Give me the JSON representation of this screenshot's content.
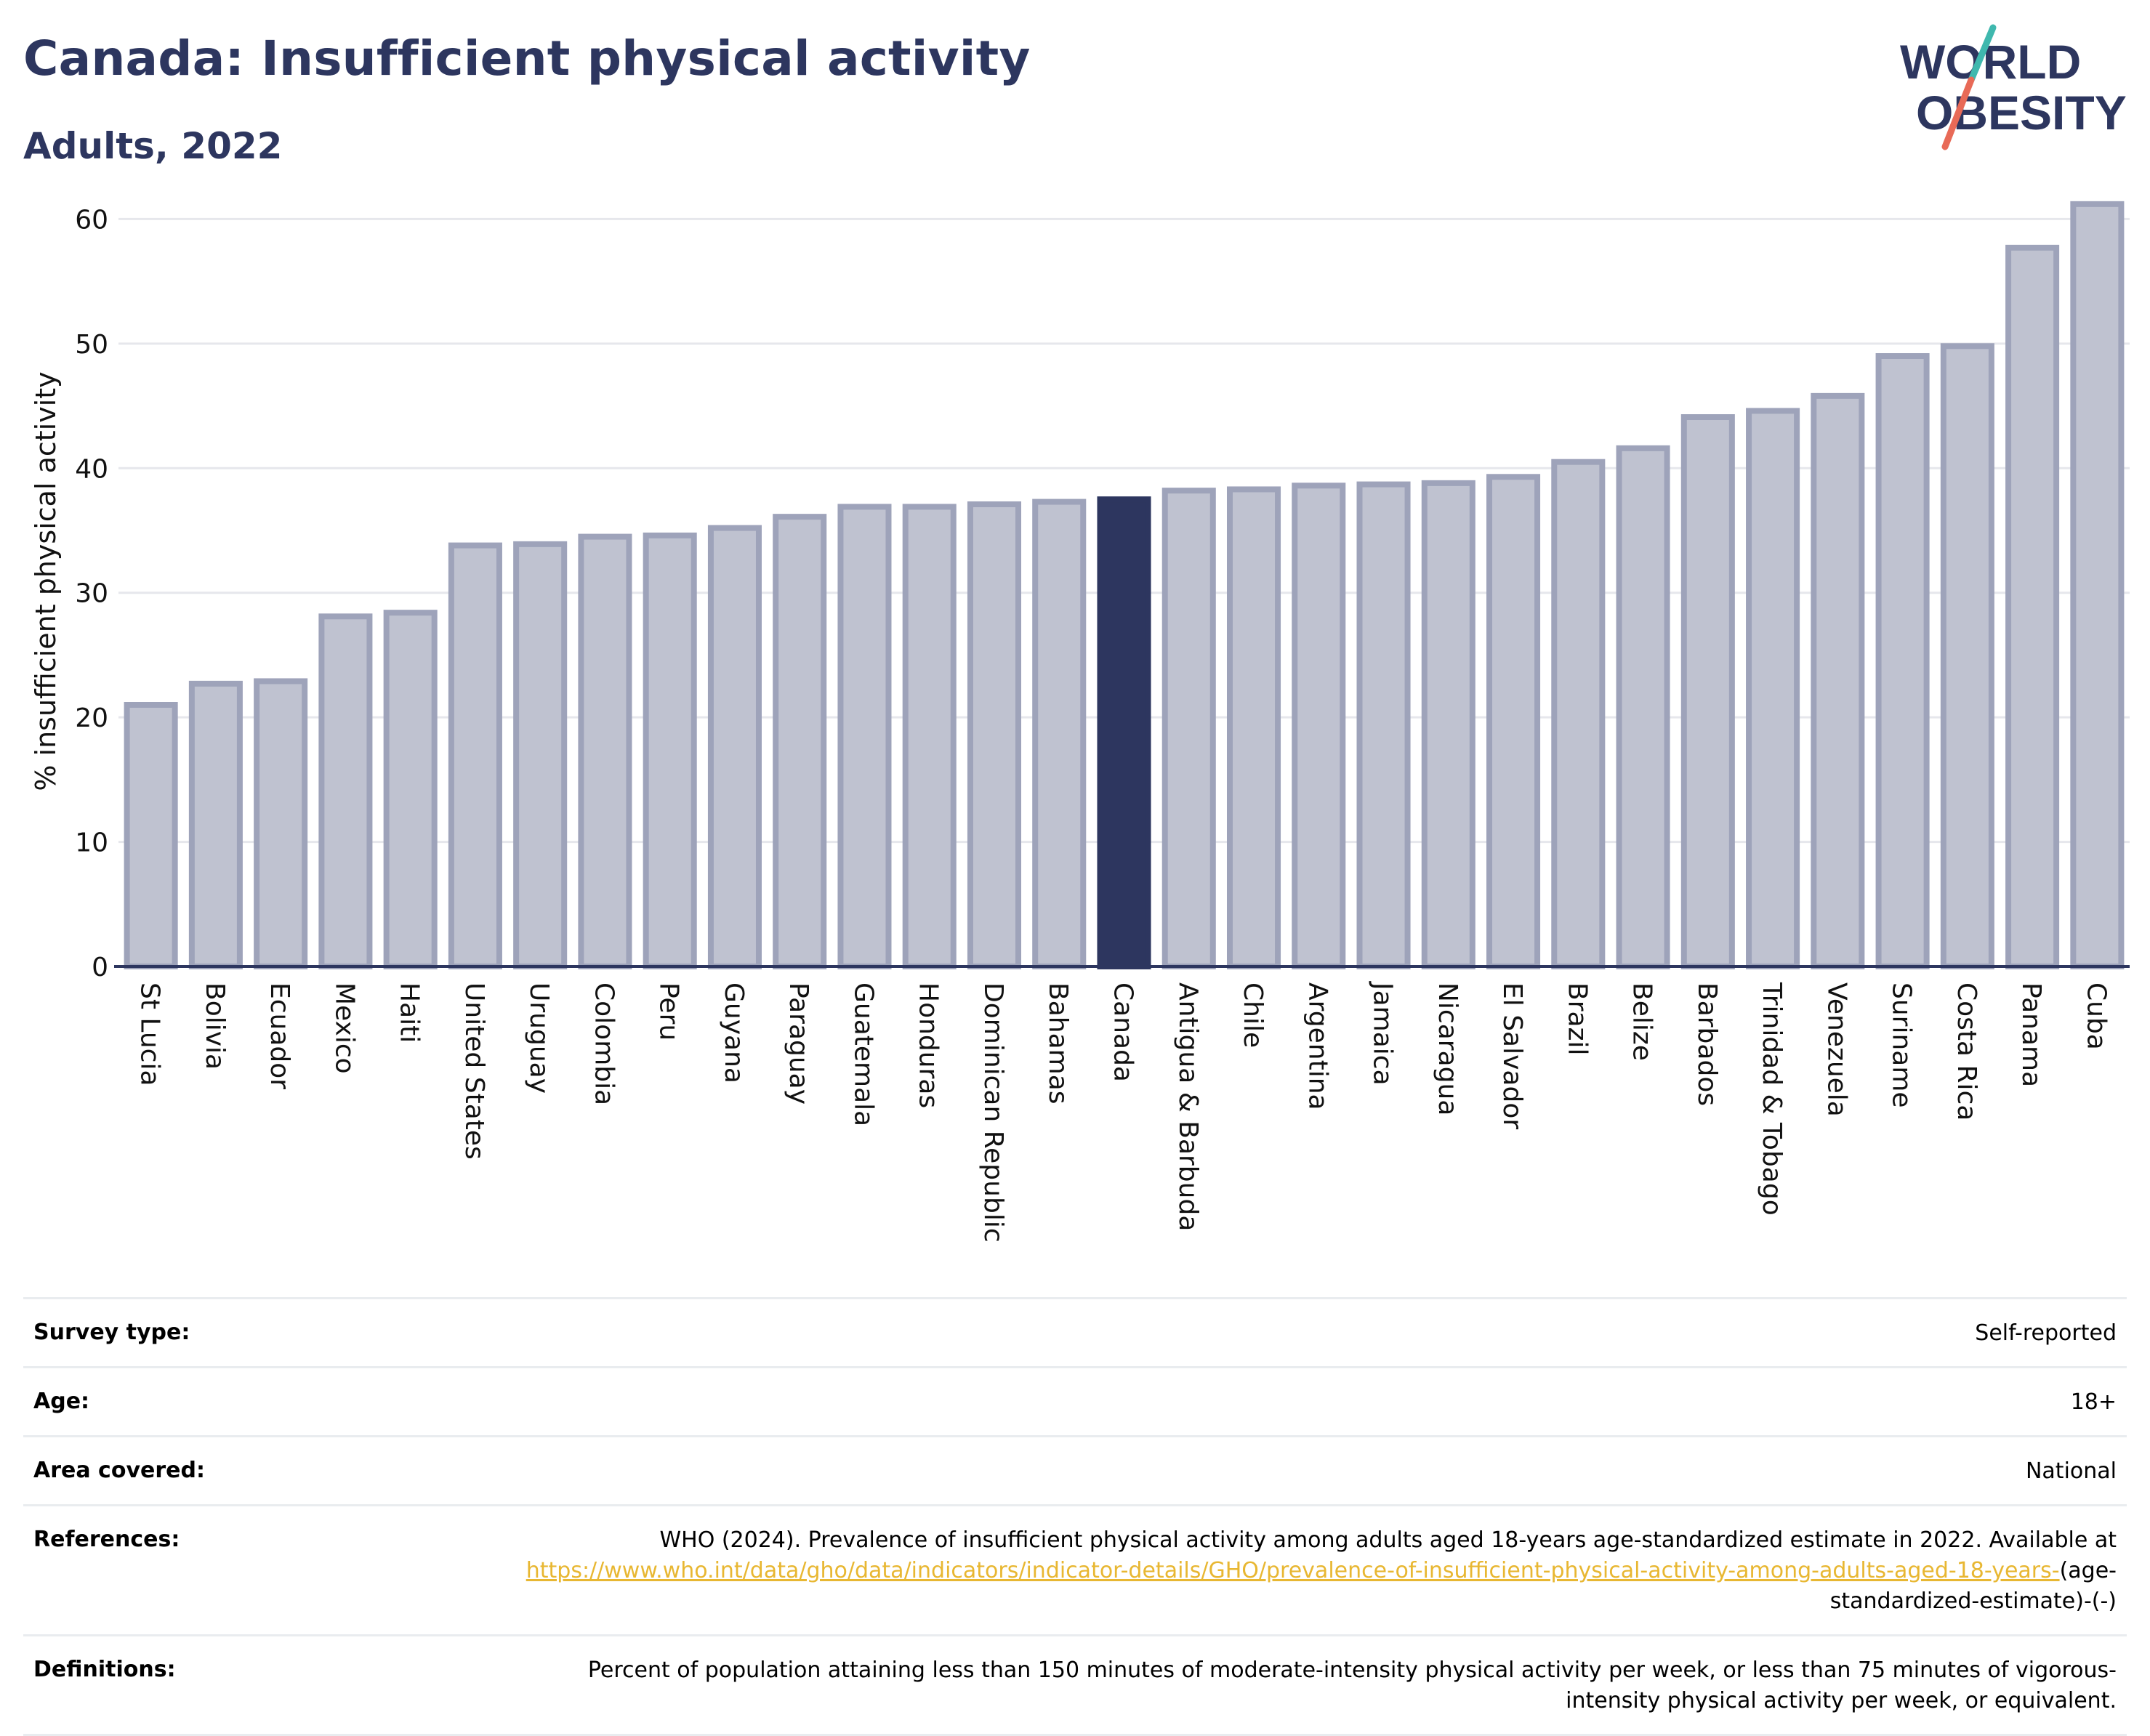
{
  "header": {
    "title": "Canada: Insufficient physical activity",
    "subtitle": "Adults, 2022",
    "logo_line1": "WORLD",
    "logo_line2": "OBESITY"
  },
  "colors": {
    "title": "#2d365f",
    "bar_fill": "#bfc2d0",
    "bar_stroke": "#9ea3ba",
    "highlight": "#2d365f",
    "link": "#e8b732",
    "logo_teal": "#3fb8ae",
    "logo_red": "#e86a57"
  },
  "chart_data": {
    "type": "bar",
    "ylabel": "% insufficient physical activity",
    "ylim": [
      0,
      63
    ],
    "yticks": [
      0,
      10,
      20,
      30,
      40,
      50,
      60
    ],
    "grid": true,
    "highlight": "Canada",
    "categories": [
      "St Lucia",
      "Bolivia",
      "Ecuador",
      "Mexico",
      "Haiti",
      "United States",
      "Uruguay",
      "Colombia",
      "Peru",
      "Guyana",
      "Paraguay",
      "Guatemala",
      "Honduras",
      "Dominican Republic",
      "Bahamas",
      "Canada",
      "Antigua & Barbuda",
      "Chile",
      "Argentina",
      "Jamaica",
      "Nicaragua",
      "El Salvador",
      "Brazil",
      "Belize",
      "Barbados",
      "Trinidad & Tobago",
      "Venezuela",
      "Suriname",
      "Costa Rica",
      "Panama",
      "Cuba"
    ],
    "values": [
      21.0,
      22.7,
      22.9,
      28.1,
      28.4,
      33.8,
      33.9,
      34.5,
      34.6,
      35.2,
      36.1,
      36.9,
      36.9,
      37.1,
      37.3,
      37.5,
      38.2,
      38.3,
      38.6,
      38.7,
      38.8,
      39.3,
      40.5,
      41.6,
      44.1,
      44.6,
      45.8,
      49.0,
      49.8,
      57.7,
      61.2
    ]
  },
  "meta": {
    "survey_type_label": "Survey type:",
    "survey_type_value": "Self-reported",
    "age_label": "Age:",
    "age_value": "18+",
    "area_label": "Area covered:",
    "area_value": "National",
    "references_label": "References:",
    "references_text": "WHO (2024). Prevalence of insufficient physical activity among adults aged 18-years age-standardized estimate in 2022. Available at",
    "references_link": "https://www.who.int/data/gho/data/indicators/indicator-details/GHO/prevalence-of-insufficient-physical-activity-among-adults-aged-18-years-",
    "references_suffix": "(age-standardized-estimate)-(-)",
    "definitions_label": "Definitions:",
    "definitions_value": "Percent of population attaining less than 150 minutes of moderate-intensity physical activity per week, or less than 75 minutes of vigorous-intensity physical activity per week, or equivalent."
  }
}
